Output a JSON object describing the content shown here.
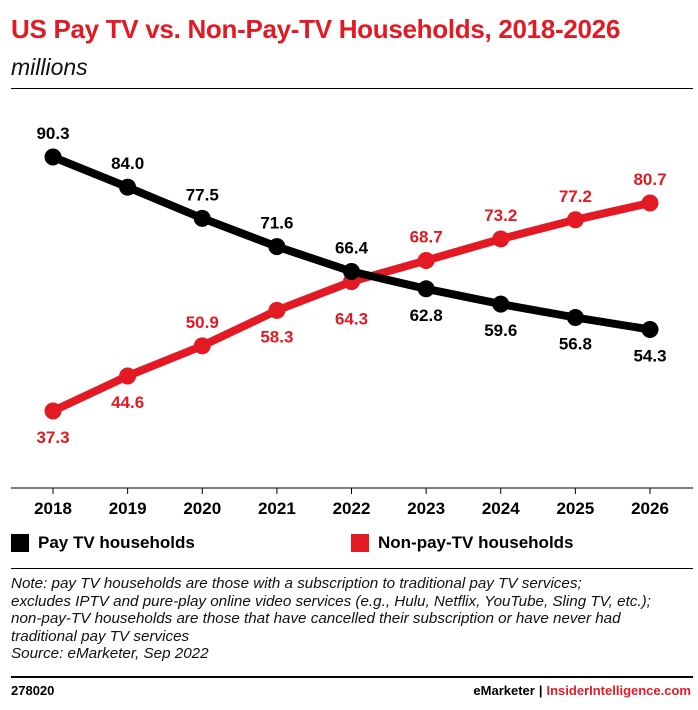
{
  "header": {
    "title": "US Pay TV vs. Non-Pay-TV Households, 2018-2026",
    "subtitle": "millions"
  },
  "legend": {
    "pay_label": "Pay TV households",
    "nonpay_label": "Non-pay-TV households"
  },
  "note": {
    "line1": "Note: pay TV households are those with a subscription to traditional pay TV services;",
    "line2": "excludes IPTV and pure-play online video services (e.g., Hulu, Netflix, YouTube, Sling TV, etc.);",
    "line3": "non-pay-TV households are those that have cancelled their subscription or have never had",
    "line4": "traditional pay TV services",
    "source": "Source: eMarketer, Sep 2022"
  },
  "footer": {
    "chart_id": "278020",
    "brand1": "eMarketer",
    "separator": "|",
    "brand2": "InsiderIntelligence.com"
  },
  "colors": {
    "accent": "#e31a24",
    "pay": "#000000",
    "nonpay": "#e31a24"
  },
  "chart_data": {
    "type": "line",
    "title": "US Pay TV vs. Non-Pay-TV Households, 2018-2026",
    "subtitle": "millions",
    "xlabel": "",
    "ylabel": "",
    "categories": [
      "2018",
      "2019",
      "2020",
      "2021",
      "2022",
      "2023",
      "2024",
      "2025",
      "2026"
    ],
    "series": [
      {
        "name": "Pay TV households",
        "color": "#000000",
        "values": [
          90.3,
          84.0,
          77.5,
          71.6,
          66.4,
          62.8,
          59.6,
          56.8,
          54.3
        ],
        "labels": [
          "90.3",
          "84.0",
          "77.5",
          "71.6",
          "66.4",
          "62.8",
          "59.6",
          "56.8",
          "54.3"
        ]
      },
      {
        "name": "Non-pay-TV households",
        "color": "#e31a24",
        "values": [
          37.3,
          44.6,
          50.9,
          58.3,
          64.3,
          68.7,
          73.2,
          77.2,
          80.7
        ],
        "labels": [
          "37.3",
          "44.6",
          "50.9",
          "58.3",
          "64.3",
          "68.7",
          "73.2",
          "77.2",
          "80.7"
        ]
      }
    ],
    "grid": false,
    "legend_position": "bottom"
  }
}
